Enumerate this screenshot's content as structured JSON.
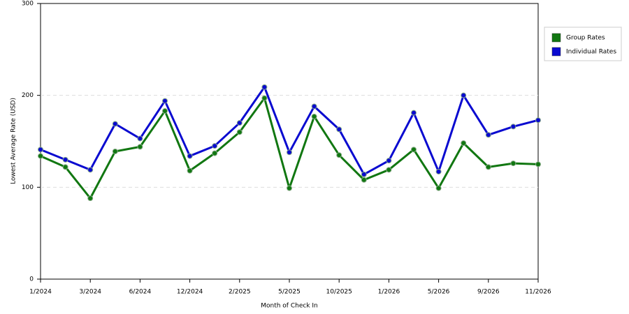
{
  "chart_data": {
    "type": "line",
    "x_label": "Month of Check In",
    "y_label": "Lowest Average Rate (USD)",
    "categories": [
      "1/2024",
      null,
      "3/2024",
      null,
      "6/2024",
      null,
      "12/2024",
      null,
      "2/2025",
      null,
      "5/2025",
      null,
      "10/2025",
      null,
      "1/2026",
      null,
      "5/2026",
      null,
      "9/2026",
      null,
      "11/2026"
    ],
    "series": [
      {
        "name": "Group Rates",
        "color": "#117711",
        "values": [
          134,
          122,
          88,
          139,
          144,
          183,
          118,
          137,
          160,
          197,
          99,
          177,
          135,
          108,
          119,
          141,
          99,
          148,
          122,
          126,
          125
        ]
      },
      {
        "name": "Individual Rates",
        "color": "#0a0ad0",
        "values": [
          141,
          130,
          119,
          169,
          153,
          194,
          134,
          145,
          170,
          209,
          138,
          188,
          163,
          114,
          129,
          181,
          117,
          200,
          157,
          166,
          173
        ]
      }
    ],
    "ylim": [
      0,
      300
    ],
    "yticks": [
      0,
      100,
      200,
      300
    ],
    "grid": true,
    "legend": "right"
  }
}
